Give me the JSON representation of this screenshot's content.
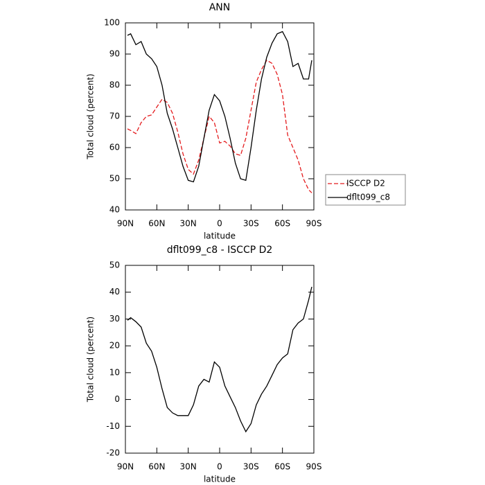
{
  "chart_data": [
    {
      "type": "line",
      "title": "ANN",
      "x_label": "latitude",
      "y_label": "Total cloud (percent)",
      "x": [
        88,
        85,
        80,
        75,
        70,
        65,
        60,
        55,
        50,
        45,
        40,
        35,
        30,
        25,
        20,
        15,
        10,
        5,
        0,
        -5,
        -10,
        -15,
        -20,
        -25,
        -30,
        -35,
        -40,
        -45,
        -50,
        -55,
        -60,
        -65,
        -70,
        -75,
        -80,
        -85,
        -88
      ],
      "series": [
        {
          "name": "ISCCP D2",
          "color": "#e41a1c",
          "dash": true,
          "values": [
            66,
            65.5,
            64.5,
            68,
            70,
            70.5,
            73,
            75.5,
            74.5,
            71,
            65,
            58,
            53,
            51.5,
            56,
            63,
            70,
            68,
            61.5,
            62,
            60.5,
            58,
            57.5,
            63,
            72,
            81,
            85,
            88,
            87,
            83.5,
            77,
            64,
            60,
            56,
            50,
            46.5,
            45.5
          ]
        },
        {
          "name": "dflt099_c8",
          "color": "#000000",
          "dash": false,
          "values": [
            96,
            96.5,
            93,
            94,
            90,
            88.5,
            86,
            80,
            71,
            66,
            60,
            54,
            49.5,
            49,
            54,
            63,
            72,
            77,
            75,
            70,
            63,
            55,
            50,
            49.5,
            60,
            72,
            82,
            89,
            93.5,
            96.5,
            97.2,
            94,
            86,
            87,
            82,
            82,
            88
          ]
        }
      ],
      "xlim": [
        90,
        -90
      ],
      "xticks": [
        {
          "value": 90,
          "label": "90N"
        },
        {
          "value": 60,
          "label": "60N"
        },
        {
          "value": 30,
          "label": "30N"
        },
        0,
        {
          "value": -30,
          "label": "30S"
        },
        {
          "value": -60,
          "label": "60S"
        },
        {
          "value": -90,
          "label": "90S"
        }
      ],
      "ylim": [
        40,
        100
      ],
      "yticks": [
        40,
        50,
        60,
        70,
        80,
        90,
        100
      ],
      "legend": "right"
    },
    {
      "type": "line",
      "title": "dflt099_c8 - ISCCP D2",
      "x_label": "latitude",
      "y_label": "Total cloud (percent)",
      "x": [
        88,
        85,
        80,
        75,
        70,
        65,
        60,
        55,
        50,
        45,
        40,
        35,
        30,
        25,
        20,
        15,
        10,
        5,
        0,
        -5,
        -10,
        -15,
        -20,
        -25,
        -30,
        -35,
        -40,
        -45,
        -50,
        -55,
        -60,
        -65,
        -70,
        -75,
        -80,
        -85,
        -88
      ],
      "series": [
        {
          "color": "#000000",
          "values": [
            29.5,
            30.5,
            29,
            27,
            21,
            18,
            12,
            4,
            -3,
            -5,
            -6,
            -6,
            -6,
            -2,
            5,
            7.5,
            6.5,
            14,
            12,
            5,
            1,
            -3,
            -8,
            -12,
            -9,
            -2,
            2,
            5,
            9,
            13,
            15.5,
            17,
            26,
            28.5,
            30,
            37,
            42
          ]
        }
      ],
      "xlim": [
        90,
        -90
      ],
      "xticks": [
        {
          "value": 90,
          "label": "90N"
        },
        {
          "value": 60,
          "label": "60N"
        },
        {
          "value": 30,
          "label": "30N"
        },
        0,
        {
          "value": -30,
          "label": "30S"
        },
        {
          "value": -60,
          "label": "60S"
        },
        {
          "value": -90,
          "label": "90S"
        }
      ],
      "ylim": [
        -20,
        50
      ],
      "yticks": [
        -20,
        -10,
        0,
        10,
        20,
        30,
        40,
        50
      ]
    }
  ]
}
